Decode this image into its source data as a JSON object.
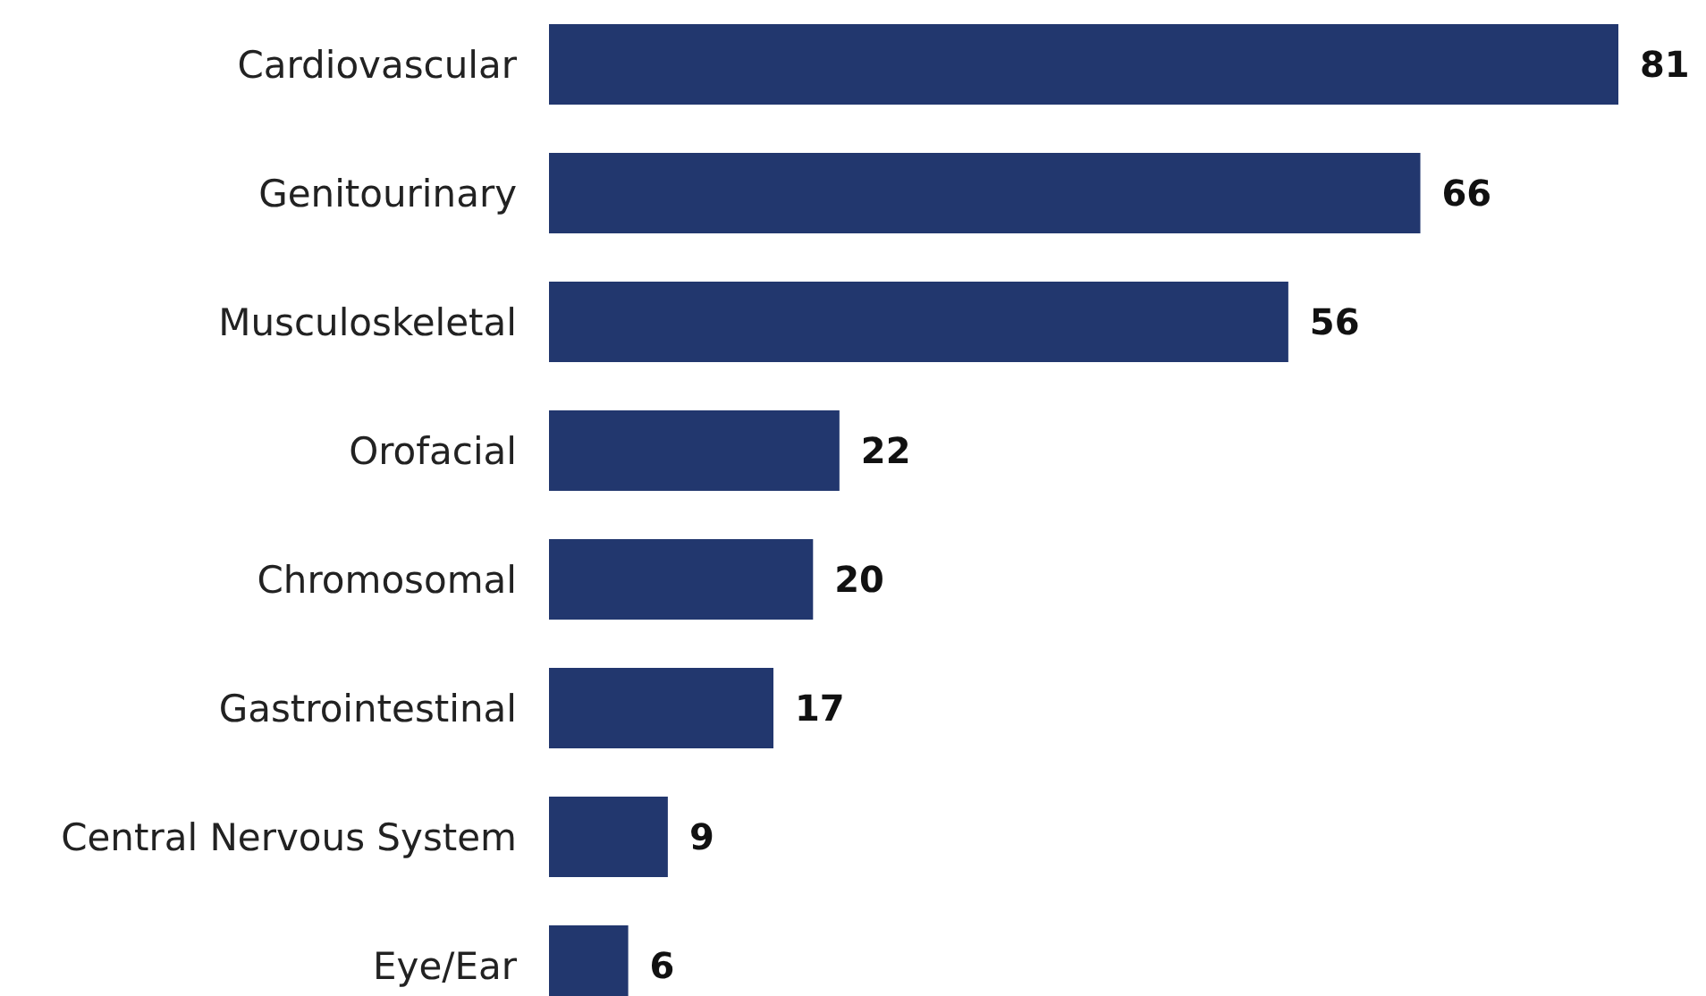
{
  "chart_data": {
    "type": "bar",
    "orientation": "horizontal",
    "data_labels": true,
    "categories": [
      "Cardiovascular",
      "Genitourinary",
      "Musculoskeletal",
      "Orofacial",
      "Chromosomal",
      "Gastrointestinal",
      "Central Nervous System",
      "Eye/Ear"
    ],
    "values": [
      81,
      66,
      56,
      22,
      20,
      17,
      9,
      6
    ],
    "color": "#22376e",
    "xlim": [
      0,
      81
    ],
    "tick_labels": "y"
  }
}
